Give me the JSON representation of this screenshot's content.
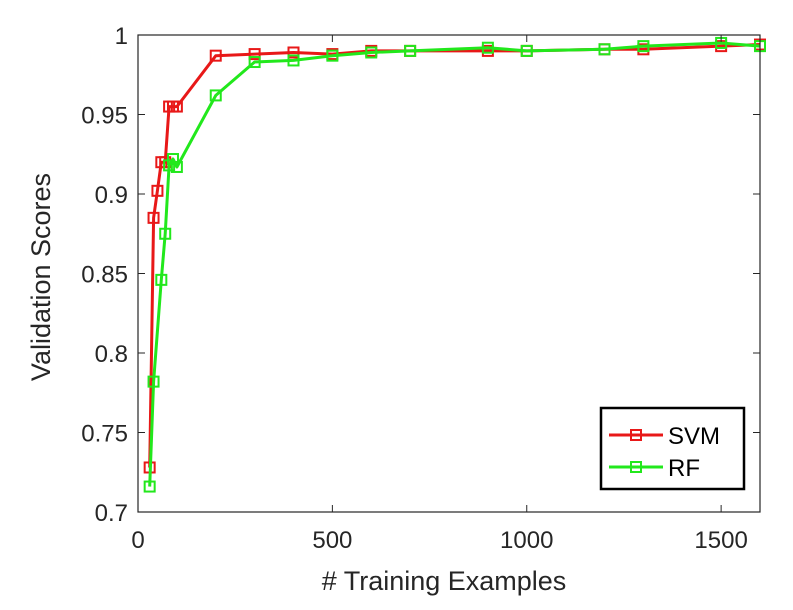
{
  "chart_data": {
    "type": "line",
    "title": "",
    "xlabel": "# Training Examples",
    "ylabel": "Validation Scores",
    "xlim": [
      0,
      1600
    ],
    "ylim": [
      0.7,
      1.0
    ],
    "xticks": [
      0,
      500,
      1000,
      1500
    ],
    "xtick_labels": [
      "0",
      "500",
      "1000",
      "1500"
    ],
    "yticks": [
      0.7,
      0.75,
      0.8,
      0.85,
      0.9,
      0.95,
      1.0
    ],
    "ytick_labels": [
      "0.7",
      "0.75",
      "0.8",
      "0.85",
      "0.9",
      "0.95",
      "1"
    ],
    "grid": false,
    "legend_position": "bottom-right",
    "marker": "square",
    "series": [
      {
        "name": "SVM",
        "color": "#e81818",
        "x": [
          30,
          40,
          50,
          60,
          70,
          80,
          90,
          100,
          200,
          300,
          400,
          500,
          600,
          700,
          900,
          1000,
          1200,
          1300,
          1500,
          1600
        ],
        "y": [
          0.728,
          0.885,
          0.902,
          0.92,
          0.92,
          0.955,
          0.955,
          0.955,
          0.987,
          0.988,
          0.989,
          0.988,
          0.99,
          0.99,
          0.99,
          0.99,
          0.991,
          0.991,
          0.993,
          0.994
        ]
      },
      {
        "name": "RF",
        "color": "#22e81c",
        "x": [
          30,
          40,
          60,
          70,
          80,
          90,
          100,
          200,
          300,
          400,
          500,
          600,
          700,
          900,
          1000,
          1200,
          1300,
          1500,
          1600
        ],
        "y": [
          0.716,
          0.782,
          0.846,
          0.875,
          0.918,
          0.922,
          0.917,
          0.962,
          0.983,
          0.984,
          0.987,
          0.989,
          0.99,
          0.992,
          0.99,
          0.991,
          0.993,
          0.995,
          0.993
        ]
      }
    ]
  }
}
